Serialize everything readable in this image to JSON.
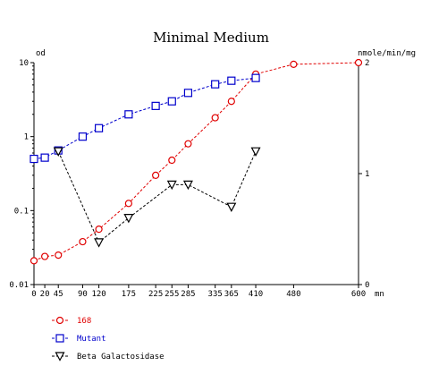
{
  "chart_data": {
    "type": "line",
    "title": "Minimal Medium",
    "left_axis": {
      "label": "od",
      "scale": "log",
      "range": [
        0.01,
        10
      ],
      "ticks": [
        0.01,
        0.1,
        1,
        10
      ],
      "tick_labels": [
        "0.01",
        "0.1",
        "1",
        "10"
      ]
    },
    "right_axis": {
      "label": "nmole/min/mg",
      "scale": "linear",
      "range": [
        0,
        2
      ],
      "ticks": [
        0,
        1,
        2
      ],
      "tick_labels": [
        "0",
        "1",
        "2"
      ]
    },
    "x_axis": {
      "unit_label": "mn",
      "range": [
        0,
        600
      ],
      "ticks": [
        0,
        20,
        45,
        90,
        120,
        175,
        225,
        255,
        285,
        335,
        365,
        410,
        480,
        600
      ],
      "tick_labels": [
        "0",
        "20",
        "45",
        "90",
        "120",
        "175",
        "225",
        "255",
        "285",
        "335",
        "365",
        "410",
        "480",
        "600"
      ]
    },
    "grid": false,
    "legend_position": "bottom-left",
    "series": [
      {
        "name": "168",
        "axis": "left",
        "color": "#e00000",
        "marker": "circle",
        "x": [
          0,
          20,
          45,
          90,
          120,
          175,
          225,
          255,
          285,
          335,
          365,
          410,
          480,
          600
        ],
        "y": [
          0.021,
          0.024,
          0.025,
          0.038,
          0.056,
          0.125,
          0.3,
          0.48,
          0.8,
          1.8,
          3.0,
          7.0,
          9.5,
          10.0
        ]
      },
      {
        "name": "Mutant",
        "axis": "left",
        "color": "#0000cc",
        "marker": "square",
        "x": [
          0,
          20,
          45,
          90,
          120,
          175,
          225,
          255,
          285,
          335,
          365,
          410
        ],
        "y": [
          0.5,
          0.52,
          0.65,
          1.0,
          1.3,
          2.0,
          2.6,
          3.0,
          3.9,
          5.1,
          5.7,
          6.2
        ]
      },
      {
        "name": "Beta Galactosidase",
        "axis": "right",
        "color": "#000000",
        "marker": "triangle-down",
        "x": [
          45,
          120,
          175,
          255,
          285,
          365,
          410
        ],
        "y": [
          1.2,
          0.38,
          0.6,
          0.9,
          0.9,
          0.7,
          1.2
        ]
      }
    ]
  }
}
